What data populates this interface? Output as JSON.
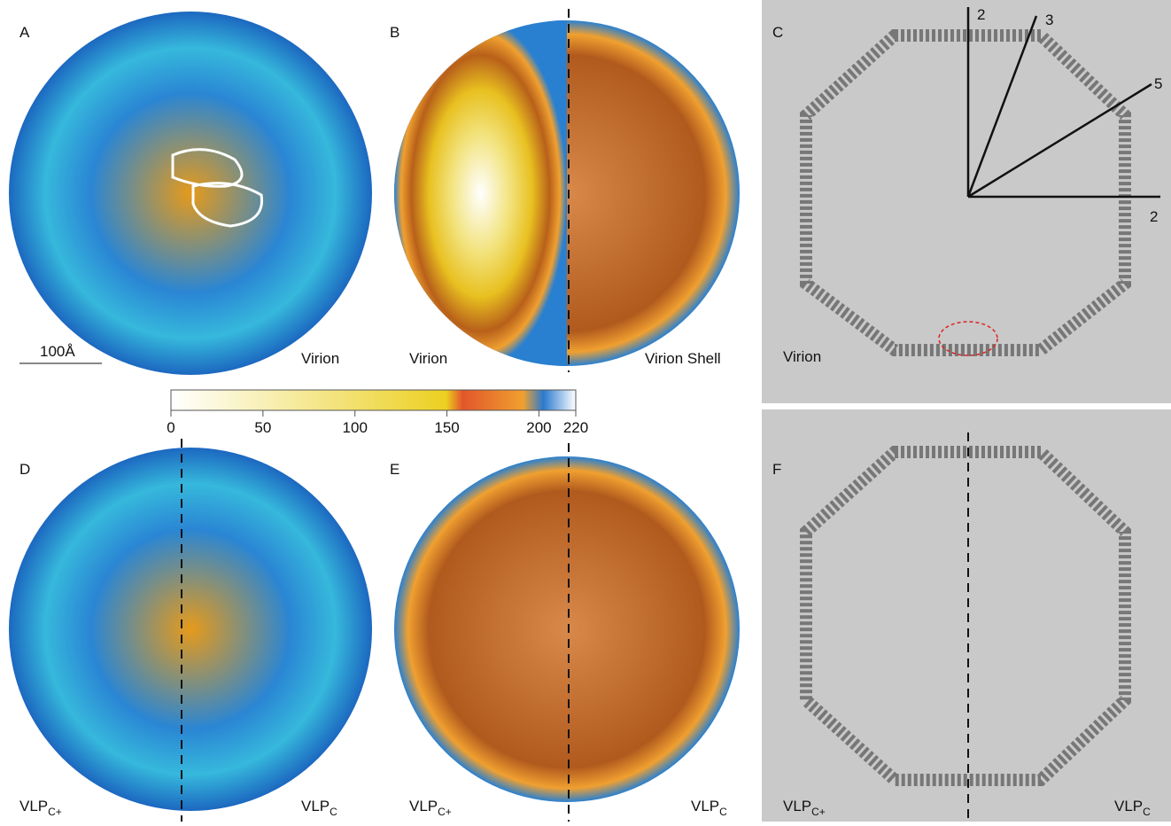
{
  "panels": [
    {
      "letter": "A",
      "labels": [
        "Virion"
      ]
    },
    {
      "letter": "B",
      "labels": [
        "Virion",
        "Virion Shell"
      ]
    },
    {
      "letter": "C",
      "labels": [
        "Virion"
      ]
    },
    {
      "letter": "D",
      "labels": [
        {
          "base": "VLP",
          "sub": "C+"
        },
        {
          "base": "VLP",
          "sub": "C"
        }
      ]
    },
    {
      "letter": "E",
      "labels": [
        {
          "base": "VLP",
          "sub": "C+"
        },
        {
          "base": "VLP",
          "sub": "C"
        }
      ]
    },
    {
      "letter": "F",
      "labels": [
        {
          "base": "VLP",
          "sub": "C+"
        },
        {
          "base": "VLP",
          "sub": "C"
        }
      ]
    }
  ],
  "scale_bar": "100Å",
  "symmetry_axes": [
    "2",
    "3",
    "5",
    "2"
  ],
  "colorbar": {
    "lim": [
      0,
      220
    ],
    "ticks": [
      0,
      50,
      100,
      150,
      200,
      220
    ]
  }
}
